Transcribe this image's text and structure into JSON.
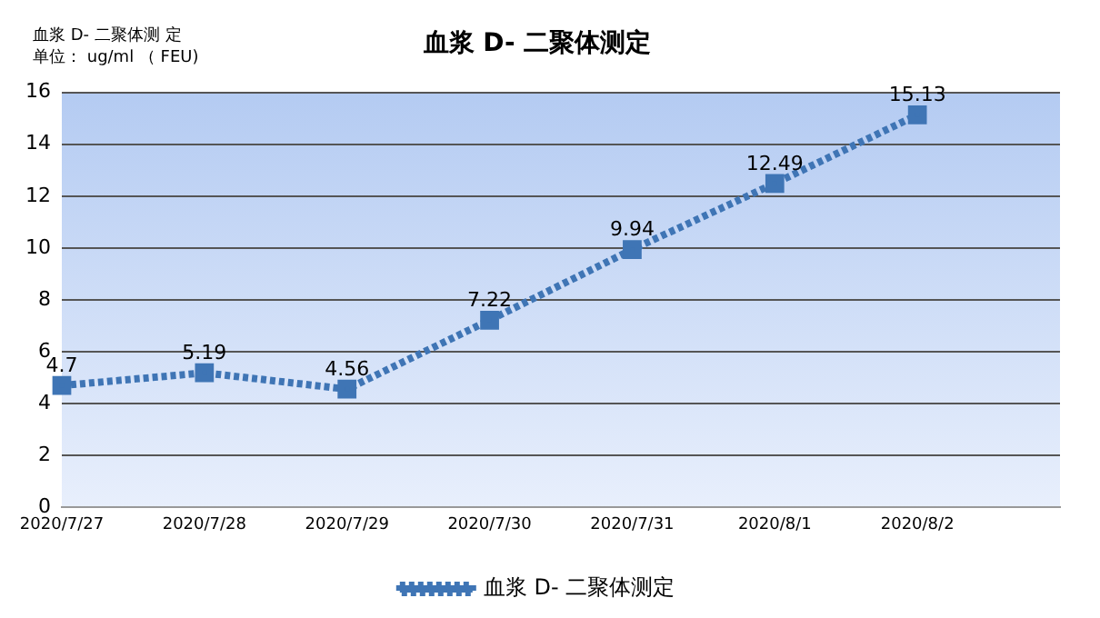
{
  "chart_data": {
    "type": "line",
    "title": "血浆 D- 二聚体测定",
    "annotations": [
      "血浆 D- 二聚体测 定",
      "单位： ug/ml （ FEU)"
    ],
    "categories": [
      "2020/7/27",
      "2020/7/28",
      "2020/7/29",
      "2020/7/30",
      "2020/7/31",
      "2020/8/1",
      "2020/8/2",
      null
    ],
    "series": [
      {
        "name": "血浆 D- 二聚体测定",
        "color": "#3f75b5",
        "values": [
          4.7,
          5.19,
          4.56,
          7.22,
          9.94,
          12.49,
          15.13,
          null
        ]
      }
    ],
    "ylim": [
      0,
      16
    ],
    "yticks": [
      0,
      2,
      4,
      6,
      8,
      10,
      12,
      14,
      16
    ],
    "grid": "y",
    "legend": "bottom",
    "data_labels": true,
    "marker": "square",
    "line_style": "dotted"
  }
}
